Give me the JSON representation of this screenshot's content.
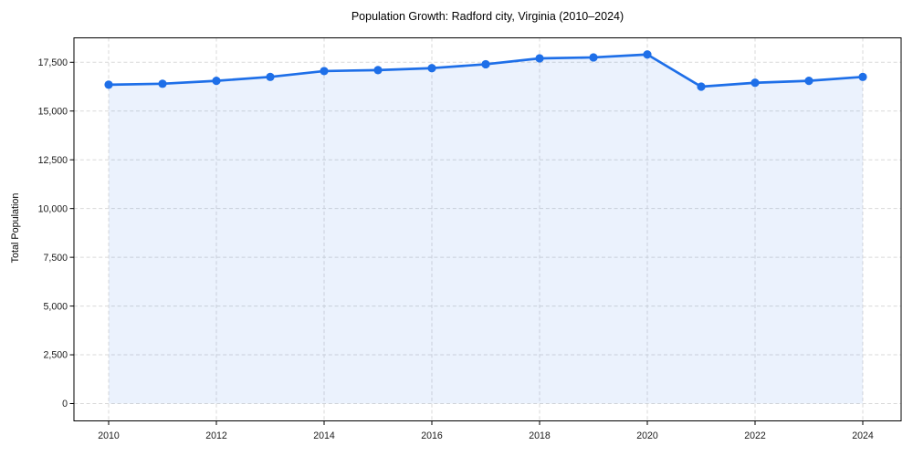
{
  "chart_data": {
    "type": "area",
    "title": "Population Growth: Radford city, Virginia (2010–2024)",
    "xlabel": "",
    "ylabel": "Total Population",
    "series_name": "Total Population",
    "x": [
      2010,
      2011,
      2012,
      2013,
      2014,
      2015,
      2016,
      2017,
      2018,
      2019,
      2020,
      2021,
      2022,
      2023,
      2024
    ],
    "values": [
      16350,
      16400,
      16550,
      16750,
      17050,
      17100,
      17200,
      17400,
      17700,
      17750,
      17900,
      16250,
      16450,
      16550,
      16750
    ],
    "xticks": [
      2010,
      2012,
      2014,
      2016,
      2018,
      2020,
      2022,
      2024
    ],
    "yticks": [
      0,
      2500,
      5000,
      7500,
      10000,
      12500,
      15000,
      17500
    ],
    "xlim": [
      2009.36,
      2024.73
    ],
    "ylim": [
      -890,
      18780
    ],
    "grid": true,
    "grid_style": "dashed",
    "legend": "none",
    "marker": "circle",
    "colors": {
      "line": "#1e6fe8",
      "fill": "rgba(30, 111, 232, 0.09)",
      "grid": "#d9d9d9",
      "spine": "#000000",
      "tick_text": "#1a1a1a",
      "title_text": "#000000",
      "background": "#ffffff"
    }
  }
}
